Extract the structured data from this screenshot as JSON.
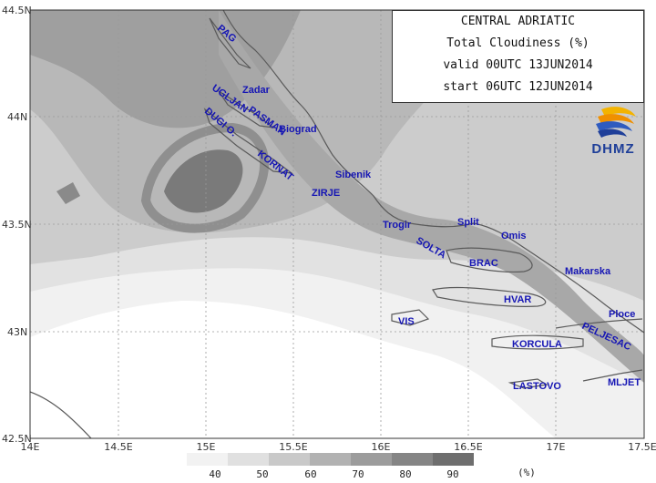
{
  "title": {
    "region": "CENTRAL ADRIATIC",
    "field": "Total Cloudiness (%)",
    "valid": "valid 00UTC 13JUN2014",
    "start": "start 06UTC 12JUN2014"
  },
  "logo": {
    "text": "DHMZ",
    "name": "dhmz-logo"
  },
  "axes": {
    "lat_labels": [
      "44.5N",
      "44N",
      "43.5N",
      "43N",
      "42.5N"
    ],
    "lon_labels": [
      "14E",
      "14.5E",
      "15E",
      "15.5E",
      "16E",
      "16.5E",
      "17E",
      "17.5E"
    ]
  },
  "legend": {
    "levels": [
      "40",
      "50",
      "60",
      "70",
      "80",
      "90"
    ],
    "unit": "(%)",
    "colors": [
      "#f2f2f2",
      "#e0e0e0",
      "#c9c9c9",
      "#b2b2b2",
      "#9c9c9c",
      "#858585",
      "#6e6e6e"
    ]
  },
  "places": [
    {
      "name": "PAG"
    },
    {
      "name": "Zadar"
    },
    {
      "name": "UGLJAN"
    },
    {
      "name": "PASMAN"
    },
    {
      "name": "Biograd"
    },
    {
      "name": "DUGI O."
    },
    {
      "name": "KORNAT"
    },
    {
      "name": "Sibenik"
    },
    {
      "name": "ZIRJE"
    },
    {
      "name": "Trogir"
    },
    {
      "name": "Split"
    },
    {
      "name": "Omis"
    },
    {
      "name": "SOLTA"
    },
    {
      "name": "BRAC"
    },
    {
      "name": "Makarska"
    },
    {
      "name": "HVAR"
    },
    {
      "name": "Ploce"
    },
    {
      "name": "VIS"
    },
    {
      "name": "PELJESAC"
    },
    {
      "name": "KORCULA"
    },
    {
      "name": "LASTOVO"
    },
    {
      "name": "MLJET"
    }
  ],
  "colors": {
    "label_text": "#1616b4",
    "coast": "#555555",
    "frame": "#333333"
  }
}
